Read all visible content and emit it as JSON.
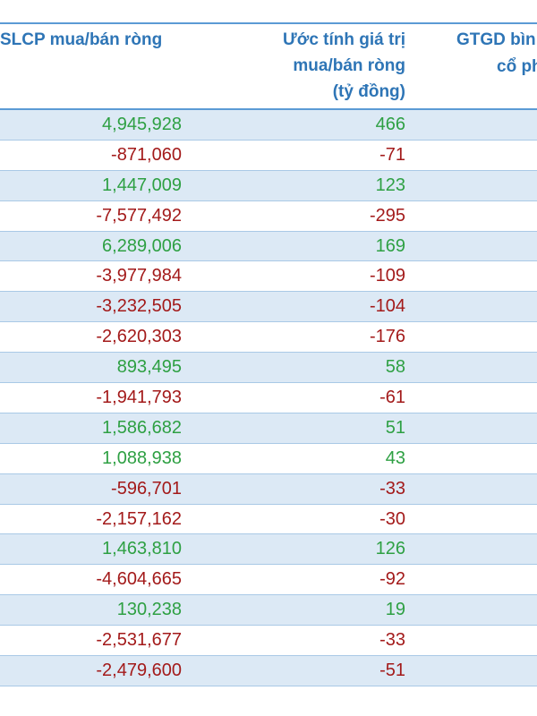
{
  "header": {
    "col1": "SLCP mua/bán ròng",
    "col2_line1": "Ước tính giá trị",
    "col2_line2": "mua/bán ròng",
    "col2_line3": "(tỷ đồng)",
    "col3_line1": "GTGD bìn",
    "col3_line2": "cổ ph"
  },
  "colors": {
    "header": "#2e75b6",
    "positive": "#2ea043",
    "negative": "#a31a1a",
    "shade": "#dce9f5",
    "rule": "#5b9bd5"
  },
  "rows": [
    {
      "shares": "4,945,928",
      "value": "466"
    },
    {
      "shares": "-871,060",
      "value": "-71"
    },
    {
      "shares": "1,447,009",
      "value": "123"
    },
    {
      "shares": "-7,577,492",
      "value": "-295"
    },
    {
      "shares": "6,289,006",
      "value": "169"
    },
    {
      "shares": "-3,977,984",
      "value": "-109"
    },
    {
      "shares": "-3,232,505",
      "value": "-104"
    },
    {
      "shares": "-2,620,303",
      "value": "-176"
    },
    {
      "shares": "893,495",
      "value": "58"
    },
    {
      "shares": "-1,941,793",
      "value": "-61"
    },
    {
      "shares": "1,586,682",
      "value": "51"
    },
    {
      "shares": "1,088,938",
      "value": "43"
    },
    {
      "shares": "-596,701",
      "value": "-33"
    },
    {
      "shares": "-2,157,162",
      "value": "-30"
    },
    {
      "shares": "1,463,810",
      "value": "126"
    },
    {
      "shares": "-4,604,665",
      "value": "-92"
    },
    {
      "shares": "130,238",
      "value": "19"
    },
    {
      "shares": "-2,531,677",
      "value": "-33"
    },
    {
      "shares": "-2,479,600",
      "value": "-51"
    }
  ]
}
